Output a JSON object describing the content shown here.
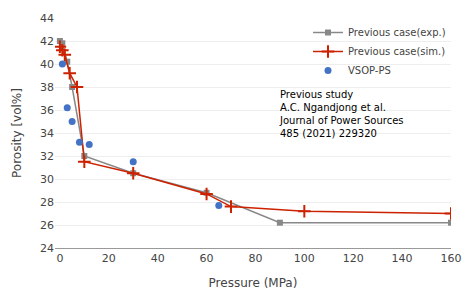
{
  "chart_data": {
    "type": "line",
    "xlabel": "Pressure (MPa)",
    "ylabel": "Porosity [vol%]",
    "xlim": [
      -2,
      160
    ],
    "ylim": [
      24,
      44
    ],
    "xticks": [
      0,
      20,
      40,
      60,
      80,
      100,
      120,
      140,
      160
    ],
    "yticks": [
      24,
      26,
      28,
      30,
      32,
      34,
      36,
      38,
      40,
      42,
      44
    ],
    "grid": "y",
    "legend": "upper right",
    "annotation": "Previous study\nA.C. Ngandjong et al.\nJournal of Power Sources\n485 (2021) 229320",
    "series": [
      {
        "name": "Previous case(exp.)",
        "type": "line",
        "marker": "square",
        "color": "#888888",
        "x": [
          0,
          1,
          3,
          5,
          10,
          30,
          60,
          90,
          160
        ],
        "values": [
          42.0,
          41.8,
          40.2,
          38.0,
          32.0,
          30.5,
          28.8,
          26.2,
          26.2
        ]
      },
      {
        "name": "Previous case(sim.)",
        "type": "line",
        "marker": "plus",
        "color": "#cc2200",
        "x": [
          0,
          1,
          2,
          4,
          7,
          10,
          30,
          60,
          70,
          100,
          160
        ],
        "values": [
          41.5,
          41.2,
          40.8,
          39.2,
          38.0,
          31.5,
          30.5,
          28.7,
          27.6,
          27.2,
          27.0
        ]
      },
      {
        "name": "VSOP-PS",
        "type": "scatter",
        "marker": "circle",
        "color": "#4472c4",
        "x": [
          1,
          3,
          5,
          8,
          12,
          30,
          65
        ],
        "values": [
          40.0,
          36.2,
          35.0,
          33.2,
          33.0,
          31.5,
          27.7
        ]
      }
    ]
  }
}
